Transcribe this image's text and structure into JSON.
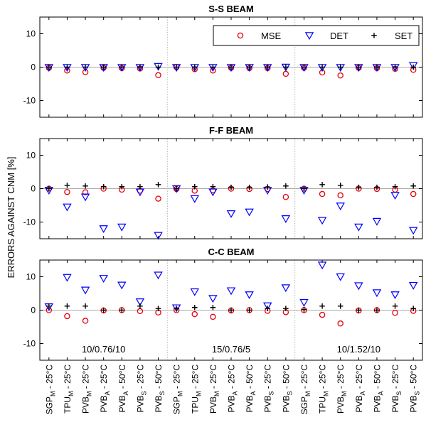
{
  "chart_data": {
    "type": "scatter",
    "ylabel": "ERRORS AGAINST CNM [%]",
    "ylim": [
      -15,
      15
    ],
    "yticks": [
      -10,
      0,
      10
    ],
    "grid": false,
    "legend_placement": "top-right (first panel)",
    "categories": [
      {
        "base": "SGP",
        "sub": "M",
        "temp": " - 25°C"
      },
      {
        "base": "TPU",
        "sub": "M",
        "temp": " - 25°C"
      },
      {
        "base": "PVB",
        "sub": "M",
        "temp": " - 25°C"
      },
      {
        "base": "PVB",
        "sub": "A",
        "temp": " - 25°C"
      },
      {
        "base": "PVB",
        "sub": "A",
        "temp": " - 50°C"
      },
      {
        "base": "PVB",
        "sub": "S",
        "temp": " - 25°C"
      },
      {
        "base": "PVB",
        "sub": "S",
        "temp": " - 50°C"
      },
      {
        "base": "SGP",
        "sub": "M",
        "temp": " - 25°C"
      },
      {
        "base": "TPU",
        "sub": "M",
        "temp": " - 25°C"
      },
      {
        "base": "PVB",
        "sub": "M",
        "temp": " - 25°C"
      },
      {
        "base": "PVB",
        "sub": "A",
        "temp": " - 25°C"
      },
      {
        "base": "PVB",
        "sub": "A",
        "temp": " - 50°C"
      },
      {
        "base": "PVB",
        "sub": "S",
        "temp": " - 25°C"
      },
      {
        "base": "PVB",
        "sub": "S",
        "temp": " - 50°C"
      },
      {
        "base": "SGP",
        "sub": "M",
        "temp": " - 25°C"
      },
      {
        "base": "TPU",
        "sub": "M",
        "temp": " - 25°C"
      },
      {
        "base": "PVB",
        "sub": "M",
        "temp": " - 25°C"
      },
      {
        "base": "PVB",
        "sub": "A",
        "temp": " - 25°C"
      },
      {
        "base": "PVB",
        "sub": "A",
        "temp": " - 50°C"
      },
      {
        "base": "PVB",
        "sub": "S",
        "temp": " - 25°C"
      },
      {
        "base": "PVB",
        "sub": "S",
        "temp": " - 50°C"
      }
    ],
    "group_labels": [
      "10/0.76/10",
      "15/0.76/5",
      "10/1.52/10"
    ],
    "legend": [
      {
        "name": "MSE",
        "marker": "circle",
        "color": "#e8000b"
      },
      {
        "name": "DET",
        "marker": "triangle-down",
        "color": "#0000ff"
      },
      {
        "name": "SET",
        "marker": "plus",
        "color": "#000000"
      }
    ],
    "panels": [
      {
        "title": "S-S BEAM",
        "series": [
          {
            "name": "MSE",
            "values": [
              -0.2,
              -1.0,
              -1.5,
              -0.2,
              -0.3,
              -0.4,
              -2.4,
              0.0,
              -0.6,
              -1.0,
              -0.2,
              -0.3,
              -0.3,
              -2.0,
              -0.2,
              -1.6,
              -2.5,
              -0.2,
              -0.3,
              -0.5,
              -0.8
            ]
          },
          {
            "name": "DET",
            "values": [
              -0.1,
              -0.1,
              -0.1,
              -0.1,
              -0.1,
              -0.1,
              0.2,
              -0.1,
              -0.1,
              -0.1,
              -0.1,
              -0.1,
              -0.1,
              0.0,
              -0.1,
              -0.1,
              -0.1,
              -0.1,
              -0.1,
              -0.1,
              0.5
            ]
          },
          {
            "name": "SET",
            "values": [
              0.0,
              0.0,
              0.0,
              0.0,
              0.0,
              0.0,
              0.0,
              0.0,
              0.0,
              0.0,
              0.0,
              0.0,
              0.0,
              0.0,
              0.0,
              0.0,
              0.0,
              0.0,
              0.0,
              0.0,
              0.0
            ]
          }
        ]
      },
      {
        "title": "F-F BEAM",
        "series": [
          {
            "name": "MSE",
            "values": [
              0.0,
              -1.0,
              -1.1,
              0.0,
              -0.3,
              -0.6,
              -3.0,
              -0.1,
              -0.6,
              -0.5,
              0.0,
              -0.1,
              -0.1,
              -2.5,
              0.0,
              -1.6,
              -2.0,
              0.0,
              -0.1,
              -0.3,
              -1.6
            ]
          },
          {
            "name": "DET",
            "values": [
              -0.5,
              -5.5,
              -2.5,
              -12.0,
              -11.5,
              -1.0,
              -14.0,
              0.0,
              -3.0,
              -1.0,
              -7.5,
              -7.0,
              -0.5,
              -9.0,
              -0.5,
              -9.5,
              -5.2,
              -11.5,
              -9.8,
              -2.0,
              -12.5
            ]
          },
          {
            "name": "SET",
            "values": [
              0.0,
              1.0,
              0.8,
              0.6,
              0.6,
              0.6,
              1.2,
              0.0,
              0.6,
              0.6,
              0.4,
              0.4,
              0.5,
              0.8,
              0.0,
              1.2,
              1.0,
              0.4,
              0.4,
              0.6,
              0.8
            ]
          }
        ]
      },
      {
        "title": "C-C BEAM",
        "series": [
          {
            "name": "MSE",
            "values": [
              0.0,
              -1.8,
              -3.2,
              -0.1,
              0.0,
              -0.3,
              -0.7,
              0.0,
              -1.2,
              -2.0,
              -0.1,
              0.0,
              -0.2,
              -0.6,
              0.0,
              -1.4,
              -4.0,
              -0.1,
              0.0,
              -0.8,
              -0.2
            ]
          },
          {
            "name": "DET",
            "values": [
              1.0,
              9.8,
              6.0,
              9.5,
              7.5,
              2.5,
              10.5,
              0.7,
              5.5,
              3.5,
              5.8,
              4.6,
              1.3,
              6.7,
              2.3,
              13.5,
              10.0,
              7.3,
              5.2,
              4.6,
              7.4
            ]
          },
          {
            "name": "SET",
            "values": [
              1.2,
              1.2,
              1.2,
              0.0,
              0.0,
              1.2,
              0.5,
              0.5,
              0.8,
              0.8,
              0.0,
              0.0,
              0.5,
              0.5,
              0.2,
              1.2,
              1.2,
              0.0,
              0.0,
              1.2,
              0.5
            ]
          }
        ]
      }
    ]
  }
}
